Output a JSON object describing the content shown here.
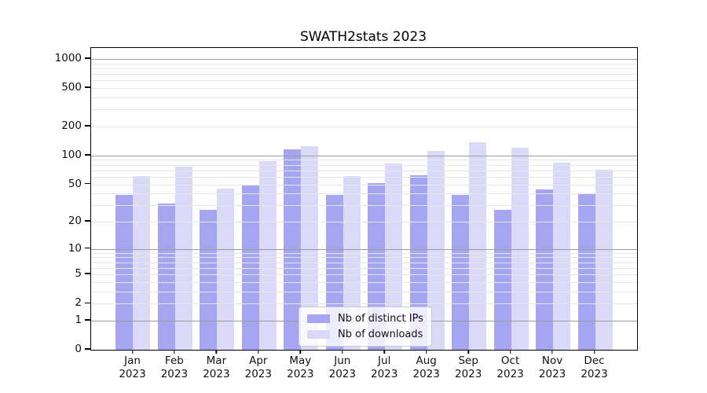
{
  "chart_data": {
    "type": "bar",
    "title": "SWATH2stats 2023",
    "xlabel": "",
    "ylabel": "",
    "year": "2023",
    "categories": [
      "Jan",
      "Feb",
      "Mar",
      "Apr",
      "May",
      "Jun",
      "Jul",
      "Aug",
      "Sep",
      "Oct",
      "Nov",
      "Dec"
    ],
    "series": [
      {
        "name": "Nb of distinct IPs",
        "color": "#a5a5f2",
        "values": [
          39,
          31,
          27,
          49,
          116,
          39,
          51,
          62,
          39,
          27,
          44,
          40
        ]
      },
      {
        "name": "Nb of downloads",
        "color": "#dadaf8",
        "values": [
          61,
          76,
          45,
          88,
          124,
          61,
          82,
          112,
          137,
          120,
          85,
          71
        ]
      }
    ],
    "yscale": "log10(value+1)",
    "ylim": [
      0,
      1300
    ],
    "yticks": [
      0,
      1,
      2,
      5,
      10,
      20,
      50,
      100,
      200,
      500,
      1000
    ],
    "grid": {
      "major": [
        1,
        10,
        100,
        1000
      ],
      "minor_base": [
        2,
        3,
        4,
        5,
        6,
        7,
        8,
        9
      ],
      "on": true
    },
    "legend_position": "inside lower center"
  }
}
